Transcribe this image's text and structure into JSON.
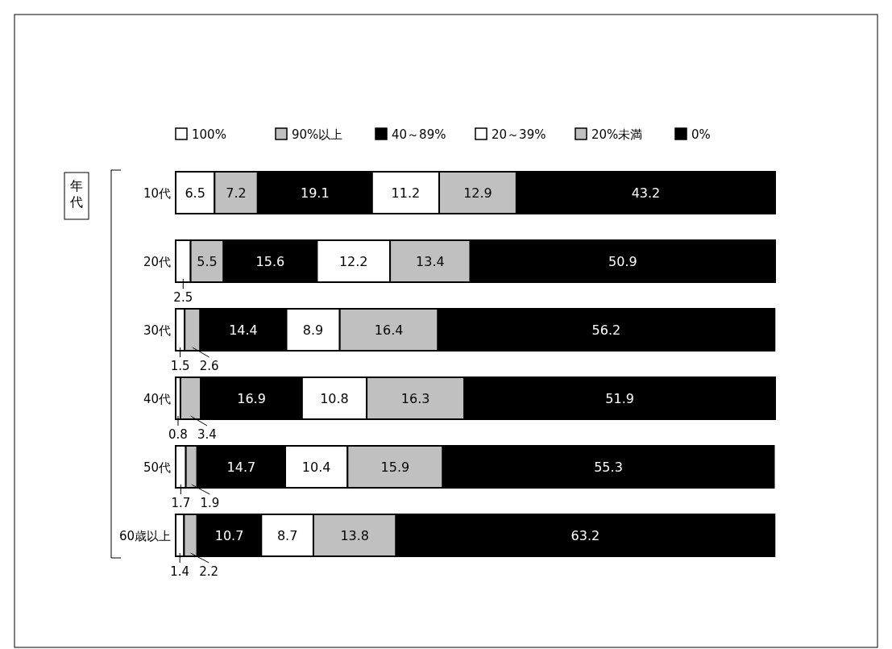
{
  "chart_data": {
    "type": "bar",
    "orientation": "horizontal",
    "stacked": true,
    "data_labels": true,
    "legend": "top",
    "ylabel": "年代",
    "categories": [
      "10代",
      "20代",
      "30代",
      "40代",
      "50代",
      "60歳以上"
    ],
    "series": [
      {
        "name": "100%",
        "color": "#ffffff",
        "values": [
          6.5,
          2.5,
          1.5,
          0.8,
          1.7,
          1.4
        ]
      },
      {
        "name": "90%以上",
        "color": "#c0c0c0",
        "values": [
          7.2,
          5.5,
          2.6,
          3.4,
          1.9,
          2.2
        ]
      },
      {
        "name": "40～89%",
        "color": "#000000",
        "values": [
          19.1,
          15.6,
          14.4,
          16.9,
          14.7,
          10.7
        ]
      },
      {
        "name": "20～39%",
        "color": "#ffffff",
        "values": [
          11.2,
          12.2,
          8.9,
          10.8,
          10.4,
          8.7
        ]
      },
      {
        "name": "20%未満",
        "color": "#c0c0c0",
        "values": [
          12.9,
          13.4,
          16.4,
          16.3,
          15.9,
          13.8
        ]
      },
      {
        "name": "0%",
        "color": "#000000",
        "values": [
          43.2,
          50.9,
          56.2,
          51.9,
          55.3,
          63.2
        ]
      }
    ]
  }
}
